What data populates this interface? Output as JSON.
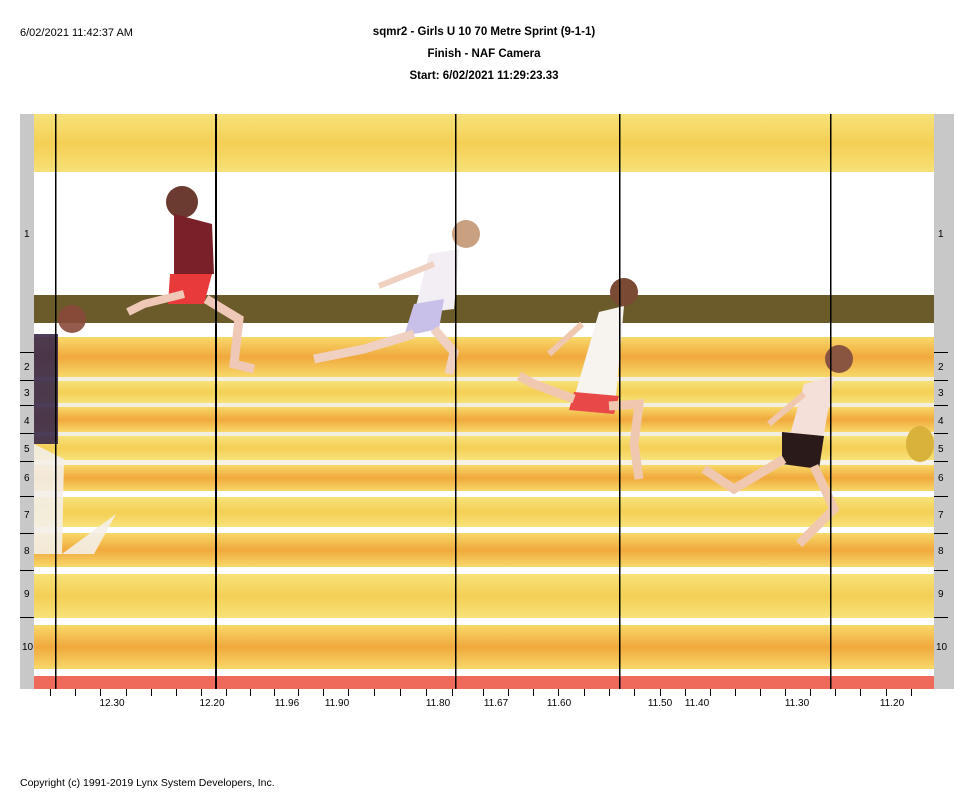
{
  "header": {
    "timestamp": "6/02/2021 11:42:37 AM",
    "title": "sqmr2 - Girls U 10 70 Metre Sprint (9-1-1)",
    "subtitle": "Finish - NAF Camera",
    "start": "Start: 6/02/2021 11:29:23.33"
  },
  "lanes": [
    "1",
    "2",
    "3",
    "4",
    "5",
    "6",
    "7",
    "8",
    "9",
    "10"
  ],
  "time_axis": {
    "labels": [
      "12.30",
      "12.20",
      "11.96",
      "11.90",
      "11.80",
      "11.67",
      "11.60",
      "11.50",
      "11.40",
      "11.30",
      "11.20"
    ]
  },
  "footer": {
    "copyright": "Copyright (c) 1991-2019 Lynx System Developers, Inc."
  },
  "colors": {
    "track_yellow": "#f6d75a",
    "track_orange": "#f0b040",
    "lane_line": "#ffffff",
    "bottom_band": "#ef6a5a",
    "dark_band": "#6b5a2a",
    "panel_gray": "#c8c8c8"
  }
}
